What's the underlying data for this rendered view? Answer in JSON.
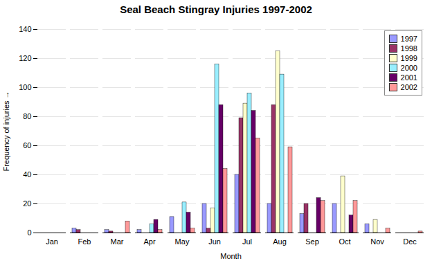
{
  "chart_data": {
    "type": "bar",
    "title": "Seal Beach Stingray Injuries 1997-2002",
    "xlabel": "Month",
    "ylabel": "Frequency of injuries",
    "categories": [
      "Jan",
      "Feb",
      "Mar",
      "Apr",
      "May",
      "Jun",
      "Jul",
      "Aug",
      "Sep",
      "Oct",
      "Nov",
      "Dec"
    ],
    "series": [
      {
        "name": "1997",
        "color": "#9999FF",
        "values": [
          0,
          3,
          2,
          2,
          11,
          20,
          40,
          20,
          13,
          20,
          6,
          0
        ]
      },
      {
        "name": "1998",
        "color": "#993366",
        "values": [
          0,
          2,
          1,
          0,
          0,
          3,
          79,
          88,
          20,
          0,
          0,
          0
        ]
      },
      {
        "name": "1999",
        "color": "#FFFFCC",
        "values": [
          0,
          0,
          0,
          0,
          0,
          17,
          89,
          125,
          0,
          39,
          9,
          0
        ]
      },
      {
        "name": "2000",
        "color": "#99EEFF",
        "values": [
          0,
          0,
          0,
          6,
          21,
          116,
          96,
          109,
          0,
          0,
          0,
          0
        ]
      },
      {
        "name": "2001",
        "color": "#660066",
        "values": [
          0,
          0,
          0,
          9,
          14,
          88,
          84,
          0,
          24,
          12,
          0,
          0
        ]
      },
      {
        "name": "2002",
        "color": "#FF9999",
        "values": [
          0,
          0,
          8,
          2,
          3,
          44,
          65,
          59,
          22,
          22,
          3,
          1
        ]
      }
    ],
    "ylim": [
      0,
      140
    ],
    "yticks": [
      0,
      20,
      40,
      60,
      80,
      100,
      120,
      140
    ],
    "grid": true,
    "legend": "upper right"
  }
}
